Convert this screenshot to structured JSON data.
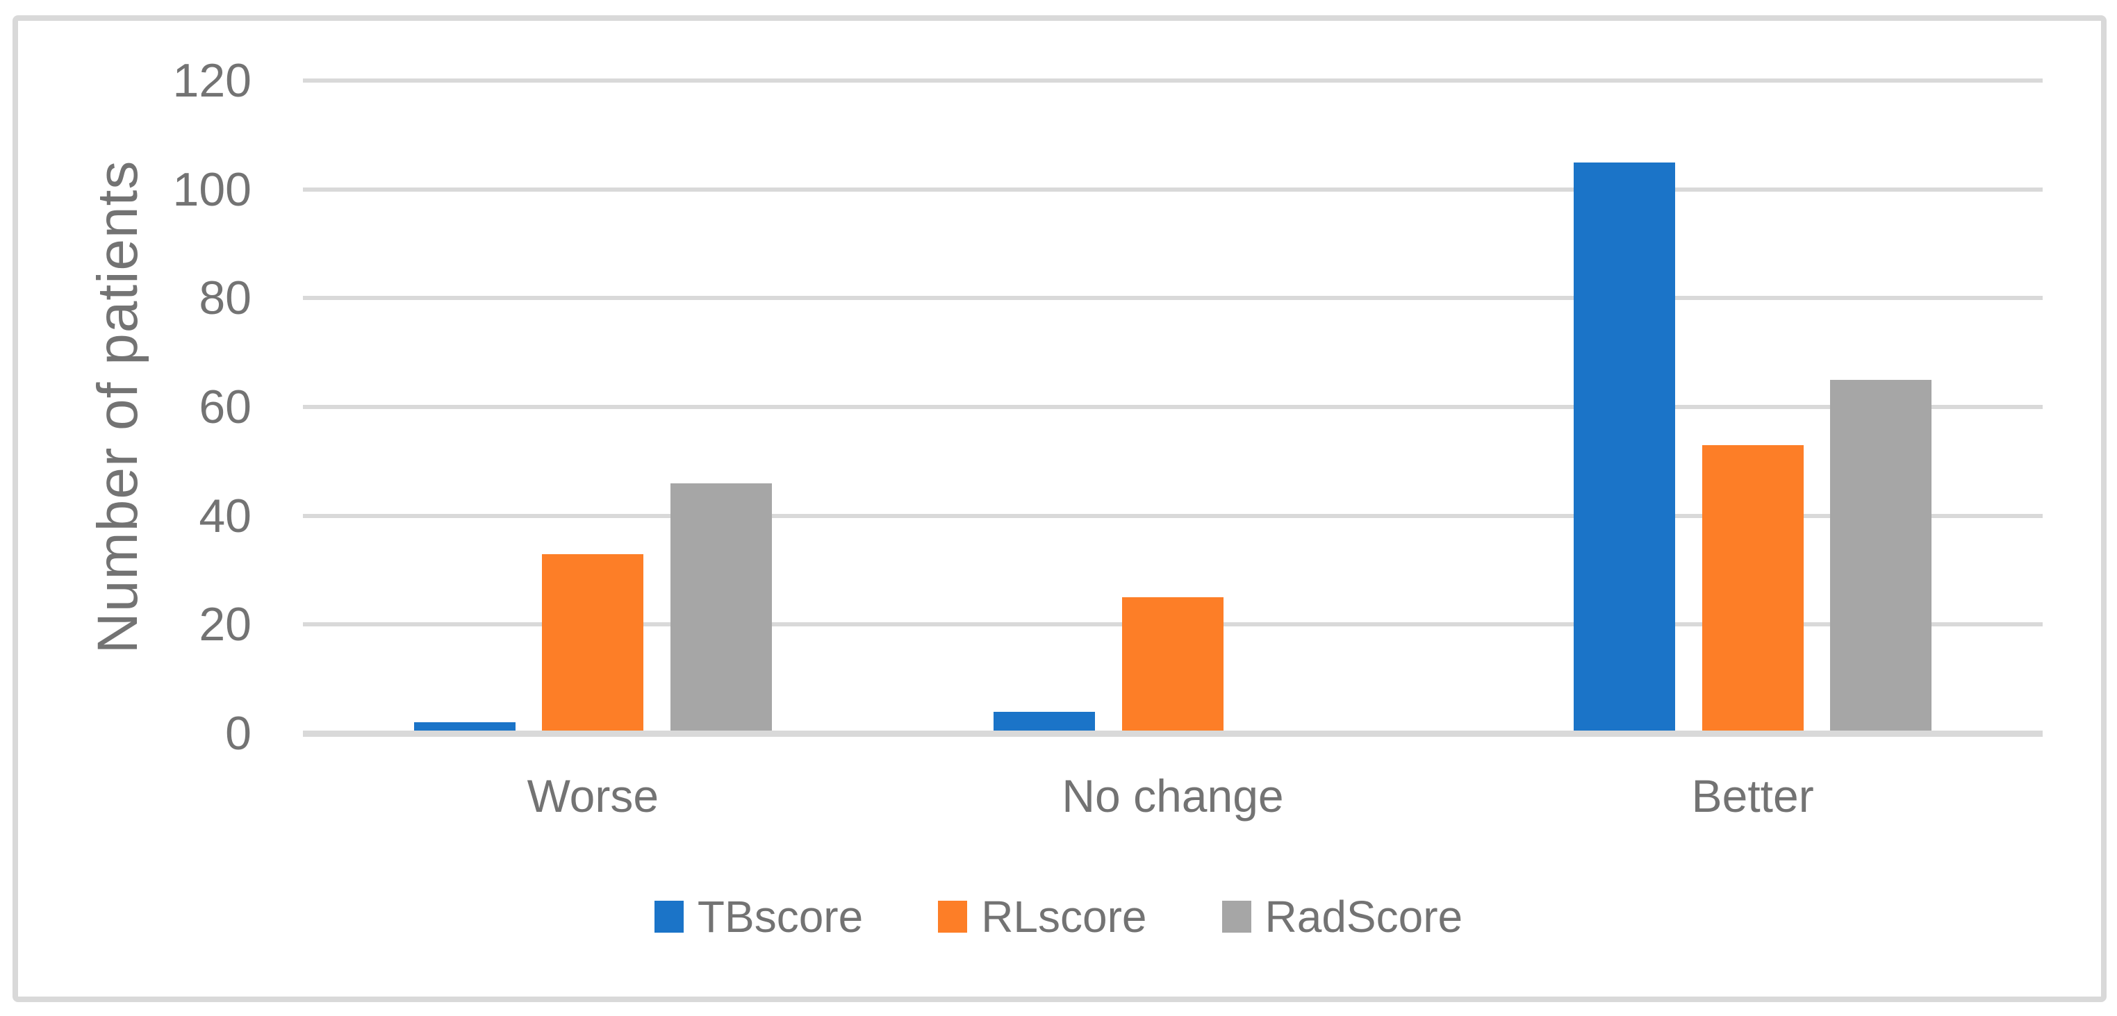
{
  "chart_data": {
    "type": "bar",
    "title": "",
    "xlabel": "",
    "ylabel": "Number of patients",
    "categories": [
      "Worse",
      "No change",
      "Better"
    ],
    "series": [
      {
        "name": "TBscore",
        "color": "#1B74C8",
        "values": [
          2,
          4,
          105
        ]
      },
      {
        "name": "RLscore",
        "color": "#FD7E27",
        "values": [
          33,
          25,
          53
        ]
      },
      {
        "name": "RadScore",
        "color": "#A6A6A6",
        "values": [
          46,
          0,
          65
        ]
      }
    ],
    "ylim": [
      0,
      120
    ],
    "yticks": [
      0,
      20,
      40,
      60,
      80,
      100,
      120
    ],
    "grid": true,
    "legend_position": "bottom",
    "colors": {
      "gridline": "#D9D9D9",
      "axis_line": "#D9D9D9",
      "text": "#737373",
      "frame_border": "#D9D9D9",
      "background": "#FFFFFF"
    }
  }
}
